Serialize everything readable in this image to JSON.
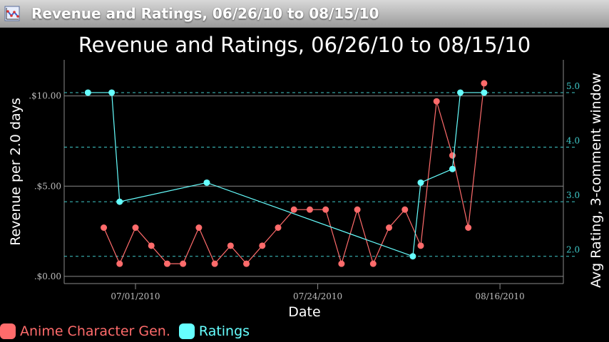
{
  "window": {
    "title": "Revenue and Ratings, 06/26/10 to 08/15/10",
    "app_icon": "chart-app-icon"
  },
  "colors": {
    "revenue": "#ff6b6b",
    "ratings": "#66ffff",
    "grid_left": "#8a8a8a",
    "grid_right": "#3fc9c9",
    "axis_text": "#bdbdbd"
  },
  "chart_data": {
    "type": "line",
    "title": "Revenue and Ratings, 06/26/10 to 08/15/10",
    "xlabel": "Date",
    "ylabel": "Revenue per 2.0 days",
    "y2label": "Avg Rating, 3-comment window",
    "xticks": [
      "07/01/2010",
      "07/24/2010",
      "08/16/2010"
    ],
    "yticks": [
      ".$0.00",
      ".$5.00",
      ".$10.00"
    ],
    "y2ticks": [
      "2.0",
      "3.0",
      "4.0",
      "5.0"
    ],
    "xlim": [
      "2010-06-22",
      "2010-08-24"
    ],
    "ylim": [
      -0.4,
      12
    ],
    "y2lim": [
      1.5,
      5.6
    ],
    "series": [
      {
        "name": "Anime Character Gen.",
        "axis": "left",
        "x": [
          "2010-06-27",
          "2010-06-29",
          "2010-07-01",
          "2010-07-03",
          "2010-07-05",
          "2010-07-07",
          "2010-07-09",
          "2010-07-11",
          "2010-07-13",
          "2010-07-15",
          "2010-07-17",
          "2010-07-19",
          "2010-07-21",
          "2010-07-23",
          "2010-07-25",
          "2010-07-27",
          "2010-07-29",
          "2010-07-31",
          "2010-08-02",
          "2010-08-04",
          "2010-08-06",
          "2010-08-08",
          "2010-08-10",
          "2010-08-12",
          "2010-08-14"
        ],
        "y": [
          2.7,
          0.7,
          2.7,
          1.7,
          0.7,
          0.7,
          2.7,
          0.7,
          1.7,
          0.7,
          1.7,
          2.7,
          3.7,
          3.7,
          3.7,
          0.7,
          3.7,
          0.7,
          2.7,
          3.7,
          1.7,
          9.7,
          6.7,
          2.7,
          10.7
        ]
      },
      {
        "name": "Ratings",
        "axis": "right",
        "x": [
          "2010-06-25",
          "2010-06-28",
          "2010-06-29",
          "2010-07-10",
          "2010-08-05",
          "2010-08-06",
          "2010-08-10",
          "2010-08-11",
          "2010-08-14"
        ],
        "y": [
          5.0,
          5.0,
          3.0,
          3.35,
          2.0,
          3.35,
          3.6,
          5.0,
          5.0
        ]
      }
    ]
  }
}
